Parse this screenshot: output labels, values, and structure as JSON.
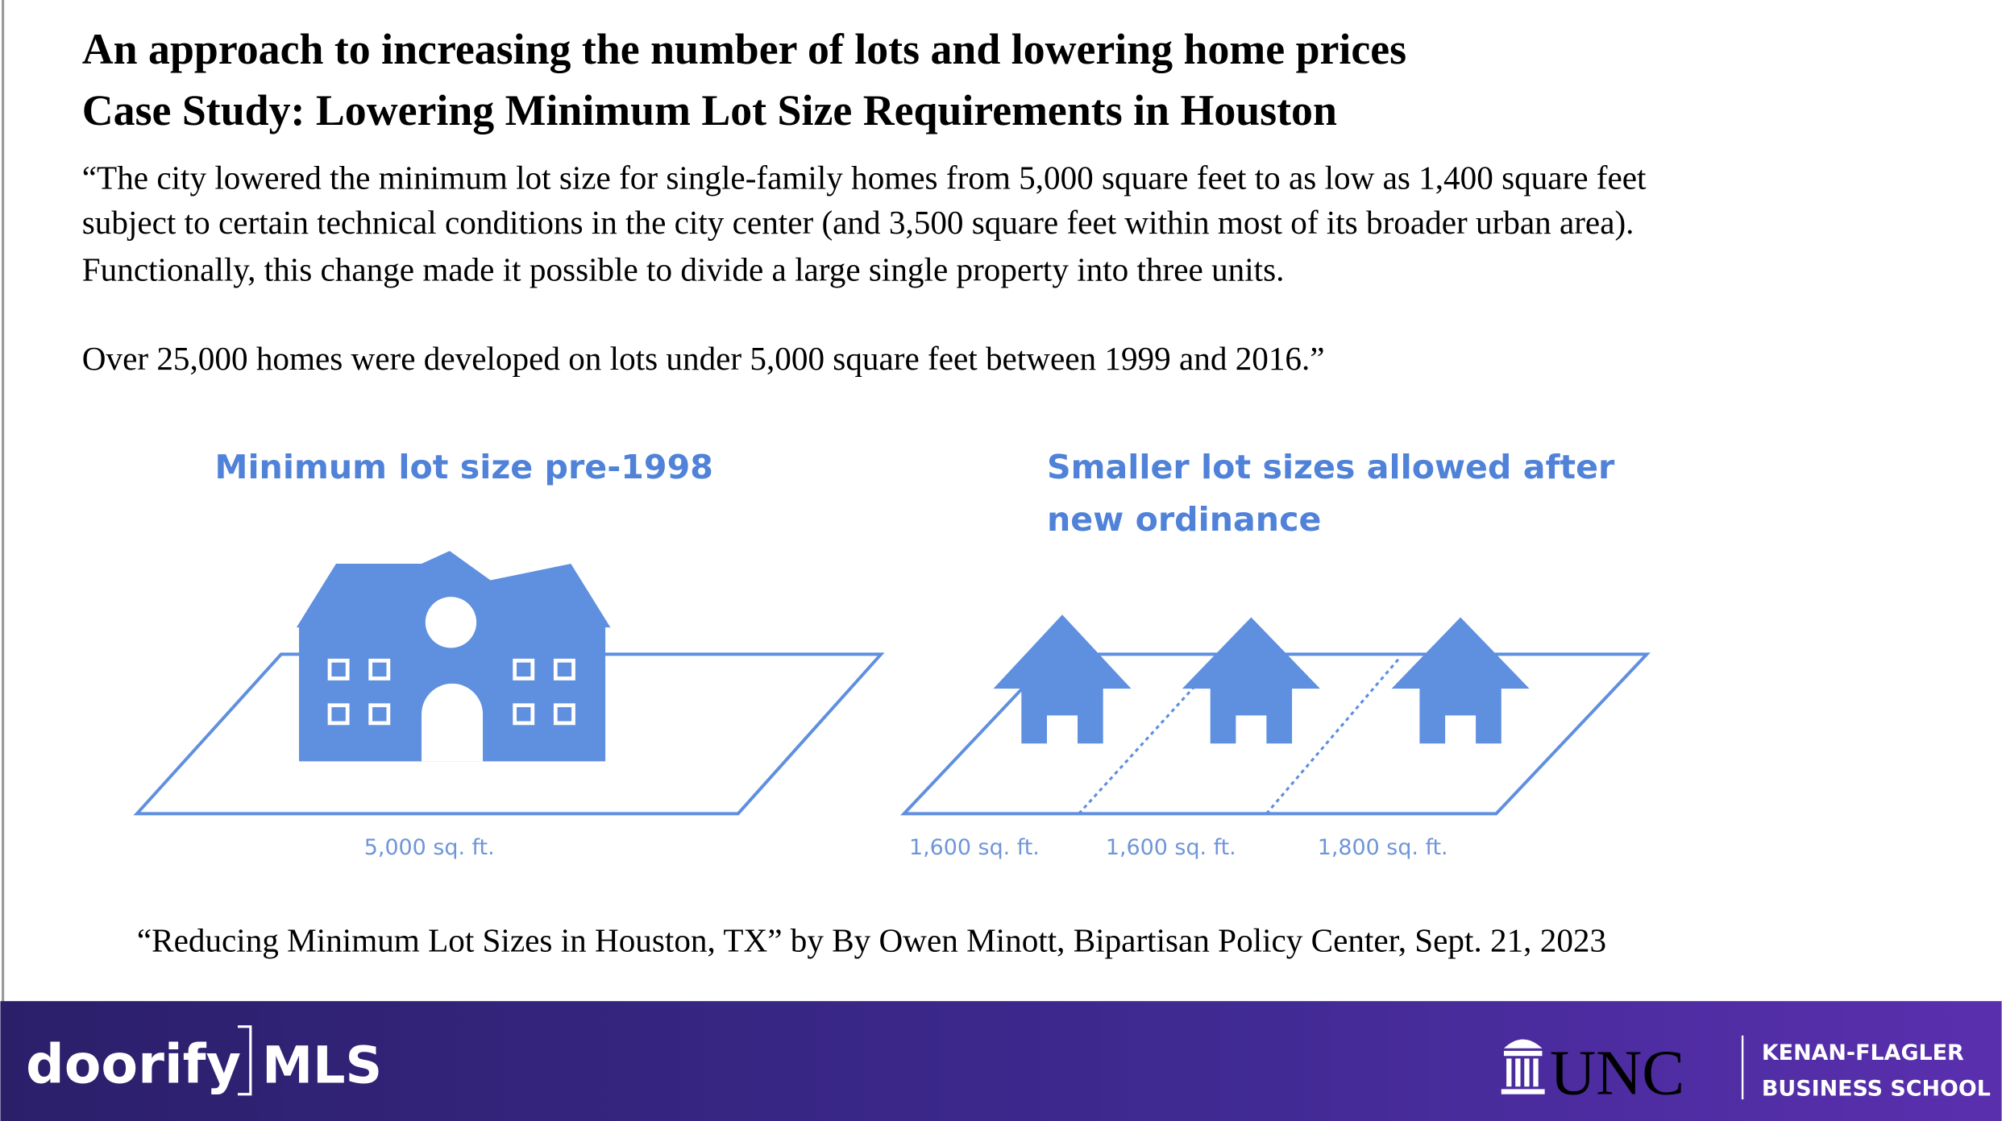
{
  "header": {
    "title_lines": [
      "An approach to increasing the number of lots and lowering home prices",
      "Case Study: Lowering Minimum Lot Size Requirements in Houston"
    ]
  },
  "quote": {
    "paragraph1_lines": [
      "“The city lowered the minimum lot size for single-family homes from 5,000 square feet to as low as 1,400 square feet",
      "subject to certain technical conditions in the city center (and 3,500 square feet within most of its broader urban area).",
      "Functionally, this change made it possible to divide a large single property into three units."
    ],
    "paragraph2": "Over 25,000 homes were developed on lots under 5,000 square feet between 1999 and 2016.”"
  },
  "diagram": {
    "left_title": "Minimum lot size pre-1998",
    "left_label": "5,000 sq. ft.",
    "right_title_lines": [
      "Smaller lot sizes allowed after",
      "new ordinance"
    ],
    "right_labels": [
      "1,600 sq. ft.",
      "1,600 sq. ft.",
      "1,800 sq. ft."
    ]
  },
  "citation": "“Reducing Minimum Lot Sizes in Houston, TX” by By  Owen Minott, Bipartisan Policy Center, Sept. 21, 2023",
  "footer": {
    "brand": "doorify",
    "brand_suffix": "MLS",
    "university": "UNC",
    "school_lines": [
      "KENAN-FLAGLER",
      "BUSINESS SCHOOL"
    ]
  }
}
